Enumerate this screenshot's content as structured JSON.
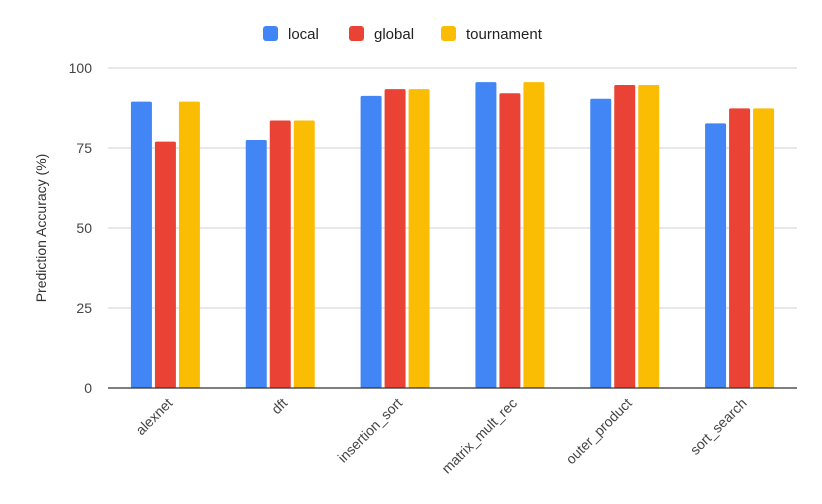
{
  "chart_data": {
    "type": "bar",
    "title": "",
    "xlabel": "",
    "ylabel": "Prediction Accuracy (%)",
    "ylim": [
      0,
      100
    ],
    "yticks": [
      0,
      25,
      50,
      75,
      100
    ],
    "grid": true,
    "legend_position": "top-center",
    "categories": [
      "alexnet",
      "dft",
      "insertion_sort",
      "matrix_mult_rec",
      "outer_product",
      "sort_search"
    ],
    "series": [
      {
        "name": "local",
        "color": "#4285F4",
        "values": [
          89.5,
          77.5,
          91.3,
          95.6,
          90.4,
          82.7
        ]
      },
      {
        "name": "global",
        "color": "#EA4335",
        "values": [
          77.0,
          83.6,
          93.4,
          92.1,
          94.7,
          87.4
        ]
      },
      {
        "name": "tournament",
        "color": "#FBBC04",
        "values": [
          89.5,
          83.6,
          93.4,
          95.6,
          94.7,
          87.4
        ]
      }
    ]
  }
}
